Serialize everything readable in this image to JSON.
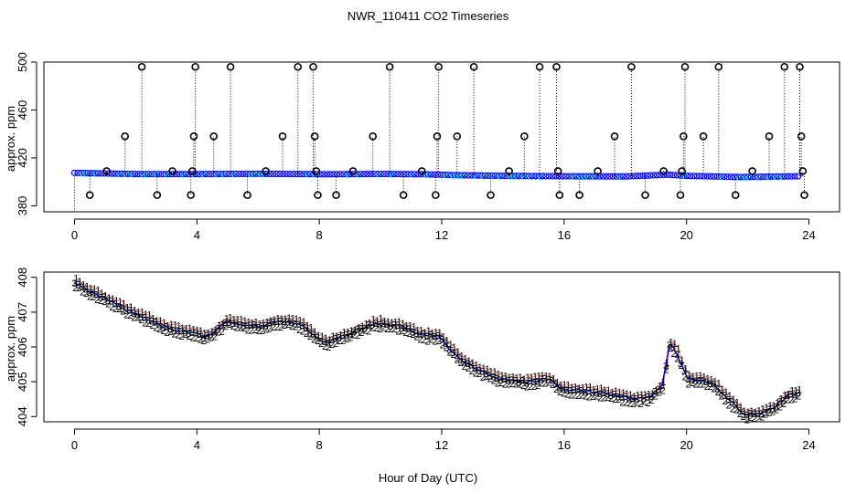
{
  "figure": {
    "title": "NWR_110411  CO2 Timeseries",
    "xlabel": "Hour of Day (UTC)"
  },
  "chart_data": [
    {
      "type": "scatter",
      "panel": "top",
      "title": "NWR_110411  CO2 Timeseries",
      "xlabel": "",
      "ylabel": "approx. ppm",
      "xlim": [
        -1,
        25
      ],
      "ylim": [
        375,
        500
      ],
      "xticks": [
        0,
        4,
        8,
        12,
        16,
        20,
        24
      ],
      "yticks": [
        380,
        420,
        460,
        500
      ],
      "grid": false,
      "legend": "none",
      "baseline": [
        [
          0,
          407.5
        ],
        [
          2,
          406.5
        ],
        [
          4,
          406.5
        ],
        [
          6,
          406.7
        ],
        [
          7.5,
          406.5
        ],
        [
          8.2,
          406.3
        ],
        [
          10,
          406.6
        ],
        [
          11.5,
          406.3
        ],
        [
          12.5,
          405.6
        ],
        [
          14,
          405.0
        ],
        [
          16,
          404.7
        ],
        [
          18,
          404.5
        ],
        [
          19.4,
          406.0
        ],
        [
          20,
          405.0
        ],
        [
          21.8,
          404.0
        ],
        [
          23.7,
          404.7
        ]
      ],
      "outliers": [
        [
          0.5,
          389
        ],
        [
          1.05,
          409
        ],
        [
          1.65,
          438
        ],
        [
          2.2,
          496
        ],
        [
          2.7,
          389
        ],
        [
          3.2,
          409
        ],
        [
          3.8,
          389
        ],
        [
          3.85,
          409
        ],
        [
          3.9,
          438
        ],
        [
          3.95,
          496
        ],
        [
          4.55,
          438
        ],
        [
          5.1,
          496
        ],
        [
          5.65,
          389
        ],
        [
          6.25,
          409
        ],
        [
          6.8,
          438
        ],
        [
          7.3,
          496
        ],
        [
          7.8,
          496
        ],
        [
          7.85,
          438
        ],
        [
          7.9,
          409
        ],
        [
          7.95,
          389
        ],
        [
          8.55,
          389
        ],
        [
          9.1,
          409
        ],
        [
          9.75,
          438
        ],
        [
          10.3,
          496
        ],
        [
          10.75,
          389
        ],
        [
          11.35,
          409
        ],
        [
          11.8,
          389
        ],
        [
          11.85,
          438
        ],
        [
          11.9,
          496
        ],
        [
          12.5,
          438
        ],
        [
          13.05,
          496
        ],
        [
          13.6,
          389
        ],
        [
          14.2,
          409
        ],
        [
          14.7,
          438
        ],
        [
          15.2,
          496
        ],
        [
          15.75,
          496
        ],
        [
          15.8,
          409
        ],
        [
          15.85,
          389
        ],
        [
          16.5,
          389
        ],
        [
          17.1,
          409
        ],
        [
          17.65,
          438
        ],
        [
          18.2,
          496
        ],
        [
          18.65,
          389
        ],
        [
          19.25,
          409
        ],
        [
          19.8,
          389
        ],
        [
          19.85,
          409
        ],
        [
          19.9,
          438
        ],
        [
          19.95,
          496
        ],
        [
          20.55,
          438
        ],
        [
          21.05,
          496
        ],
        [
          21.6,
          389
        ],
        [
          22.15,
          409
        ],
        [
          22.7,
          438
        ],
        [
          23.2,
          496
        ],
        [
          23.7,
          496
        ],
        [
          23.75,
          438
        ],
        [
          23.8,
          409
        ],
        [
          23.85,
          389
        ]
      ]
    },
    {
      "type": "scatter",
      "panel": "bottom",
      "xlabel": "Hour of Day (UTC)",
      "ylabel": "approx. ppm",
      "xlim": [
        -1,
        25
      ],
      "ylim": [
        403.85,
        408.15
      ],
      "xticks": [
        0,
        4,
        8,
        12,
        16,
        20,
        24
      ],
      "yticks": [
        404,
        405,
        406,
        407,
        408
      ],
      "grid": false,
      "legend": "none",
      "series_markers": [
        "1",
        "2",
        "3"
      ],
      "series_colors": [
        "#ff0000",
        "#00cc00",
        "#0000ff"
      ],
      "anchors": [
        [
          0,
          407.85
        ],
        [
          0.5,
          407.6
        ],
        [
          1,
          407.4
        ],
        [
          1.5,
          407.15
        ],
        [
          2,
          406.95
        ],
        [
          2.5,
          406.75
        ],
        [
          3,
          406.55
        ],
        [
          3.6,
          406.45
        ],
        [
          4.0,
          406.4
        ],
        [
          4.2,
          406.3
        ],
        [
          4.6,
          406.45
        ],
        [
          5,
          406.75
        ],
        [
          5.5,
          406.65
        ],
        [
          6,
          406.6
        ],
        [
          6.5,
          406.7
        ],
        [
          7,
          406.75
        ],
        [
          7.5,
          406.6
        ],
        [
          7.8,
          406.35
        ],
        [
          8.2,
          406.1
        ],
        [
          8.7,
          406.3
        ],
        [
          9.3,
          406.5
        ],
        [
          9.8,
          406.7
        ],
        [
          10.3,
          406.65
        ],
        [
          10.8,
          406.55
        ],
        [
          11.3,
          406.35
        ],
        [
          11.9,
          406.3
        ],
        [
          12.2,
          406.0
        ],
        [
          12.7,
          405.6
        ],
        [
          13.3,
          405.3
        ],
        [
          14,
          405.05
        ],
        [
          14.8,
          405.0
        ],
        [
          15.5,
          405.1
        ],
        [
          15.9,
          404.8
        ],
        [
          16.5,
          404.75
        ],
        [
          17.1,
          404.7
        ],
        [
          17.7,
          404.6
        ],
        [
          18.3,
          404.5
        ],
        [
          18.8,
          404.55
        ],
        [
          19.2,
          404.9
        ],
        [
          19.45,
          406.1
        ],
        [
          19.7,
          405.8
        ],
        [
          20.0,
          405.1
        ],
        [
          20.5,
          405.05
        ],
        [
          20.9,
          404.95
        ],
        [
          21.2,
          404.6
        ],
        [
          21.6,
          404.3
        ],
        [
          21.9,
          404.05
        ],
        [
          22.4,
          404.1
        ],
        [
          22.9,
          404.3
        ],
        [
          23.3,
          404.6
        ],
        [
          23.7,
          404.7
        ]
      ]
    }
  ]
}
